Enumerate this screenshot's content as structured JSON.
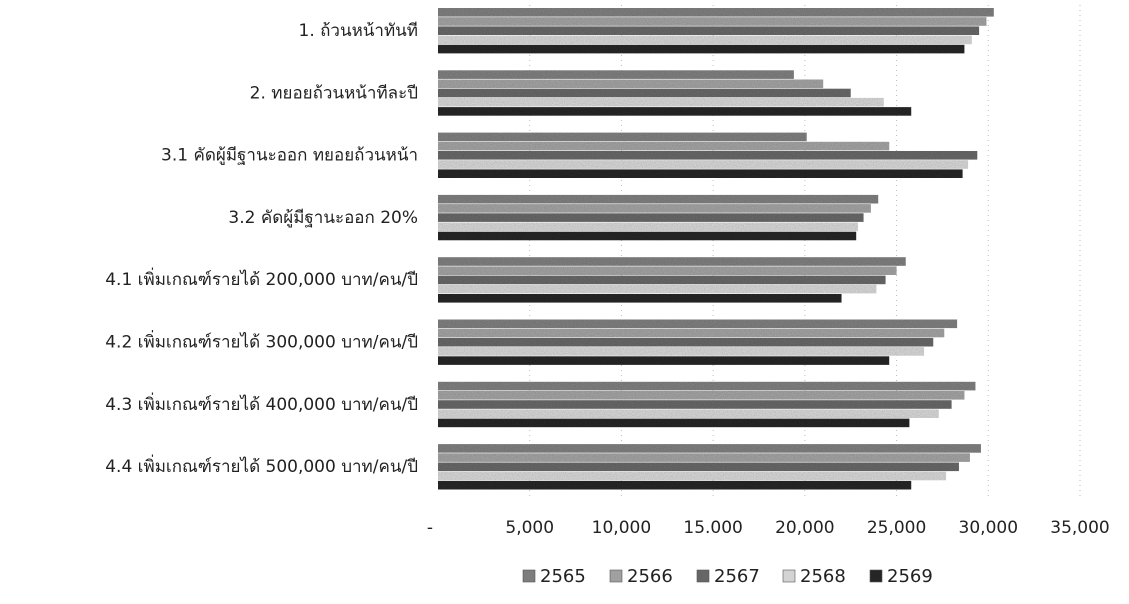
{
  "chart_data": {
    "type": "bar",
    "orientation": "horizontal",
    "categories": [
      "1. ถ้วนหน้าทันที",
      "2. ทยอยถ้วนหน้าทีละปี",
      "3.1 คัดผู้มีฐานะออก ทยอยถ้วนหน้า",
      "3.2 คัดผู้มีฐานะออก 20%",
      "4.1 เพิ่มเกณฑ์รายได้ 200,000 บาท/คน/ปี",
      "4.2 เพิ่มเกณฑ์รายได้ 300,000 บาท/คน/ปี",
      "4.3 เพิ่มเกณฑ์รายได้ 400,000 บาท/คน/ปี",
      "4.4 เพิ่มเกณฑ์รายได้ 500,000 บาท/คน/ปี"
    ],
    "series": [
      {
        "name": "2565",
        "values": [
          30300,
          19400,
          20100,
          24000,
          25500,
          28300,
          29300,
          29600
        ]
      },
      {
        "name": "2566",
        "values": [
          29900,
          21000,
          24600,
          23600,
          25000,
          27600,
          28700,
          29000
        ]
      },
      {
        "name": "2567",
        "values": [
          29500,
          22500,
          29400,
          23200,
          24400,
          27000,
          28000,
          28400
        ]
      },
      {
        "name": "2568",
        "values": [
          29100,
          24300,
          28900,
          22900,
          23900,
          26500,
          27300,
          27700
        ]
      },
      {
        "name": "2569",
        "values": [
          28700,
          25800,
          28600,
          22800,
          22000,
          24600,
          25700,
          25800
        ]
      }
    ],
    "xlim": [
      0,
      35000
    ],
    "tick_labels": [
      "-",
      "5,000",
      "10,000",
      "15.000",
      "20,000",
      "25,000",
      "30,000",
      "35,000"
    ],
    "legend_position": "bottom",
    "grid": "vertical",
    "colors": [
      "#7d7d7d",
      "#a0a0a0",
      "#666666",
      "#d3d3d3",
      "#262626"
    ]
  }
}
